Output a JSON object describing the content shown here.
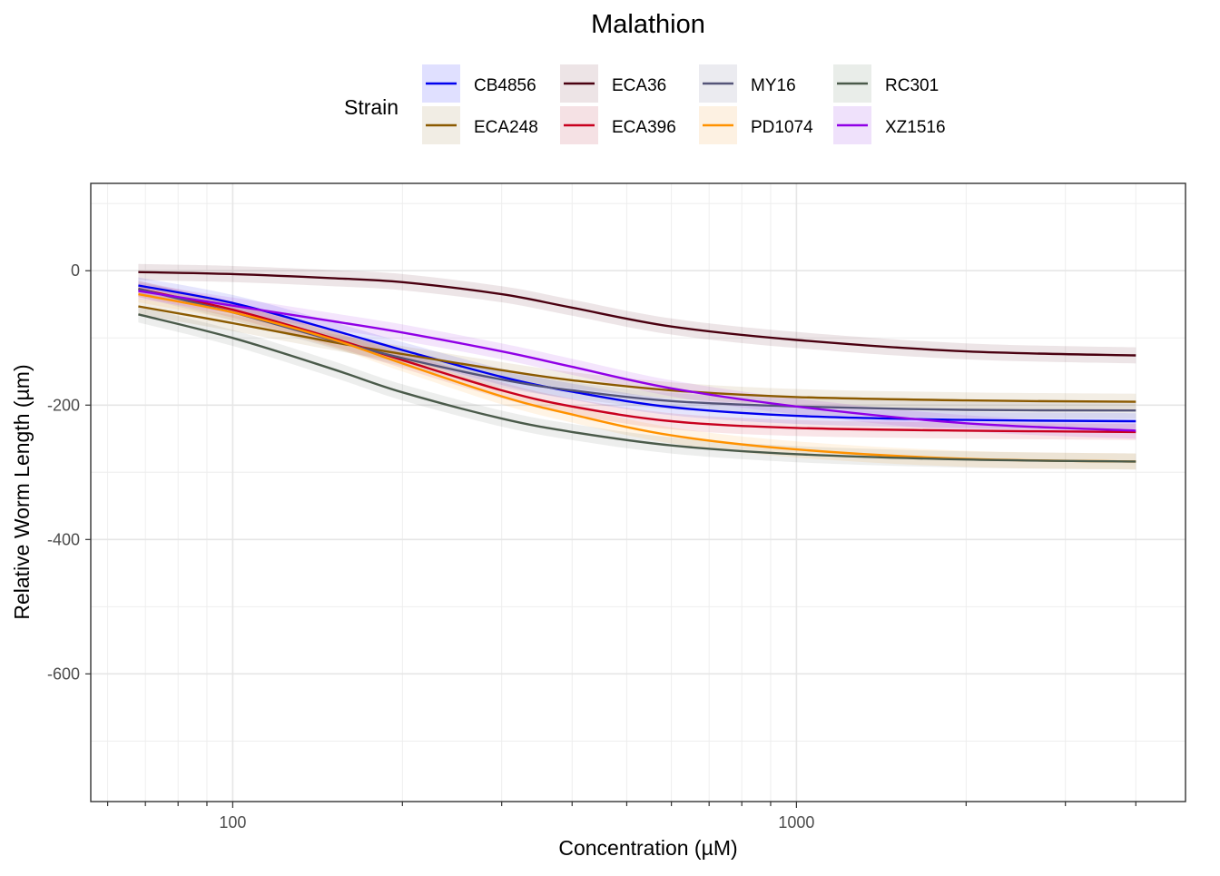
{
  "chart_data": {
    "type": "line",
    "title": "Malathion",
    "xlabel": "Concentration (µM)",
    "ylabel": "Relative Worm Length (µm)",
    "x_scale": "log10",
    "xlim": [
      56,
      4900
    ],
    "ylim": [
      -790,
      130
    ],
    "x_ticks": [
      100,
      1000
    ],
    "x_tick_labels": [
      "100",
      "1000"
    ],
    "y_ticks": [
      0,
      -200,
      -400,
      -600
    ],
    "y_tick_labels": [
      "0",
      "-200",
      "-400",
      "-600"
    ],
    "grid": true,
    "legend": {
      "title": "Strain",
      "placement": "top",
      "ncol": 4
    },
    "series": [
      {
        "name": "CB4856",
        "color": "#0000ee",
        "ribbon": "#e0e0ff",
        "x": [
          68,
          100,
          150,
          200,
          300,
          400,
          600,
          1000,
          2000,
          4000
        ],
        "values": [
          -22,
          -48,
          -88,
          -118,
          -158,
          -180,
          -203,
          -216,
          -222,
          -224
        ]
      },
      {
        "name": "ECA248",
        "color": "#8b5a00",
        "ribbon": "#f1ede4",
        "x": [
          68,
          100,
          150,
          200,
          300,
          400,
          600,
          1000,
          2000,
          4000
        ],
        "values": [
          -53,
          -78,
          -106,
          -124,
          -148,
          -163,
          -178,
          -188,
          -193,
          -195
        ]
      },
      {
        "name": "ECA36",
        "color": "#4a0010",
        "ribbon": "#ede4e6",
        "x": [
          68,
          100,
          150,
          200,
          300,
          400,
          600,
          1000,
          2000,
          4000
        ],
        "values": [
          -2,
          -5,
          -11,
          -17,
          -35,
          -55,
          -83,
          -103,
          -120,
          -126
        ]
      },
      {
        "name": "ECA396",
        "color": "#c8001e",
        "ribbon": "#f5e1e4",
        "x": [
          68,
          100,
          150,
          200,
          300,
          400,
          600,
          1000,
          2000,
          4000
        ],
        "values": [
          -27,
          -58,
          -100,
          -133,
          -178,
          -202,
          -224,
          -234,
          -238,
          -240
        ]
      },
      {
        "name": "MY16",
        "color": "#545478",
        "ribbon": "#ebebf0",
        "x": [
          68,
          100,
          150,
          200,
          300,
          400,
          600,
          1000,
          2000,
          4000
        ],
        "values": [
          -27,
          -62,
          -103,
          -130,
          -162,
          -178,
          -194,
          -202,
          -207,
          -208
        ]
      },
      {
        "name": "PD1074",
        "color": "#ff9200",
        "ribbon": "#fdf1e2",
        "x": [
          68,
          100,
          150,
          200,
          300,
          400,
          600,
          1000,
          2000,
          4000
        ],
        "values": [
          -35,
          -62,
          -102,
          -138,
          -187,
          -214,
          -245,
          -266,
          -280,
          -284
        ]
      },
      {
        "name": "RC301",
        "color": "#4a5a4a",
        "ribbon": "#e9ede9",
        "x": [
          68,
          100,
          150,
          200,
          300,
          400,
          600,
          1000,
          2000,
          4000
        ],
        "values": [
          -65,
          -100,
          -146,
          -181,
          -220,
          -240,
          -260,
          -273,
          -281,
          -284
        ]
      },
      {
        "name": "XZ1516",
        "color": "#9000e6",
        "ribbon": "#efe1fb",
        "x": [
          68,
          100,
          150,
          200,
          300,
          400,
          600,
          1000,
          2000,
          4000
        ],
        "values": [
          -30,
          -52,
          -75,
          -92,
          -120,
          -143,
          -175,
          -202,
          -227,
          -238
        ]
      }
    ]
  }
}
